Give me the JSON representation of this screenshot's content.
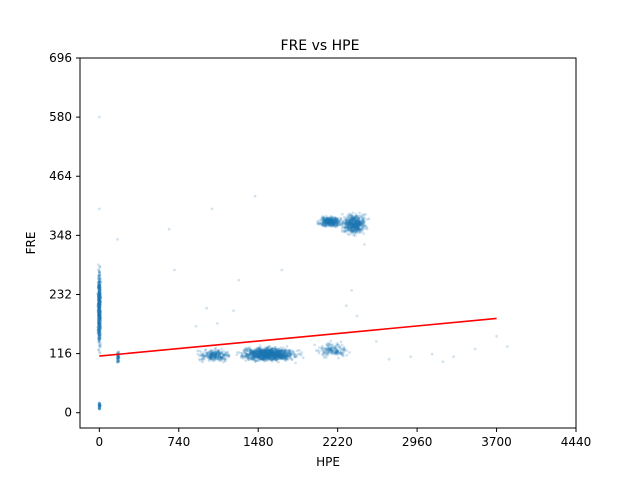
{
  "chart_data": {
    "type": "scatter",
    "title": "FRE vs HPE",
    "xlabel": "HPE",
    "ylabel": "FRE",
    "xlim": [
      -180,
      4440
    ],
    "ylim": [
      -30,
      696
    ],
    "xticks": [
      0,
      740,
      1480,
      2220,
      2960,
      3700,
      4440
    ],
    "yticks": [
      0,
      116,
      232,
      348,
      464,
      580,
      696
    ],
    "grid": false,
    "colors": {
      "points": "#1f77b4",
      "trend": "#ff0000",
      "axes": "#000000"
    },
    "point_alpha": 0.2,
    "clusters": [
      {
        "x_range": [
          -20,
          20
        ],
        "y_range": [
          85,
          320
        ],
        "count": 600,
        "label": "vertical column at HPE≈0"
      },
      {
        "x_range": [
          -10,
          15
        ],
        "y_range": [
          0,
          25
        ],
        "count": 40,
        "label": "near origin"
      },
      {
        "x_range": [
          160,
          190
        ],
        "y_range": [
          90,
          130
        ],
        "count": 60,
        "label": "column at HPE≈170"
      },
      {
        "x_range": [
          850,
          1300
        ],
        "y_range": [
          95,
          130
        ],
        "count": 250,
        "label": "left dense band"
      },
      {
        "x_range": [
          1200,
          1950
        ],
        "y_range": [
          95,
          135
        ],
        "count": 1200,
        "label": "main dense band"
      },
      {
        "x_range": [
          1950,
          2400
        ],
        "y_range": [
          100,
          145
        ],
        "count": 150,
        "label": "right band tail"
      },
      {
        "x_range": [
          2000,
          2300
        ],
        "y_range": [
          360,
          390
        ],
        "count": 350,
        "label": "upper cluster left"
      },
      {
        "x_range": [
          2200,
          2550
        ],
        "y_range": [
          340,
          400
        ],
        "count": 500,
        "label": "upper cluster right"
      }
    ],
    "sparse_points": [
      {
        "x": 0,
        "y": 580
      },
      {
        "x": 0,
        "y": 400
      },
      {
        "x": 170,
        "y": 340
      },
      {
        "x": 1450,
        "y": 425
      },
      {
        "x": 1050,
        "y": 400
      },
      {
        "x": 2580,
        "y": 140
      },
      {
        "x": 2900,
        "y": 110
      },
      {
        "x": 3100,
        "y": 115
      },
      {
        "x": 3300,
        "y": 110
      },
      {
        "x": 3500,
        "y": 125
      },
      {
        "x": 700,
        "y": 280
      },
      {
        "x": 650,
        "y": 360
      },
      {
        "x": 1300,
        "y": 260
      },
      {
        "x": 1700,
        "y": 280
      },
      {
        "x": 2350,
        "y": 240
      },
      {
        "x": 2300,
        "y": 210
      },
      {
        "x": 2400,
        "y": 190
      },
      {
        "x": 2470,
        "y": 330
      },
      {
        "x": 3800,
        "y": 130
      },
      {
        "x": 3700,
        "y": 150
      },
      {
        "x": 1250,
        "y": 200
      },
      {
        "x": 1000,
        "y": 205
      },
      {
        "x": 1100,
        "y": 175
      },
      {
        "x": 900,
        "y": 170
      },
      {
        "x": 2700,
        "y": 105
      },
      {
        "x": 3200,
        "y": 100
      }
    ],
    "trend_line": {
      "x": [
        0,
        3700
      ],
      "y": [
        111,
        185
      ]
    }
  }
}
